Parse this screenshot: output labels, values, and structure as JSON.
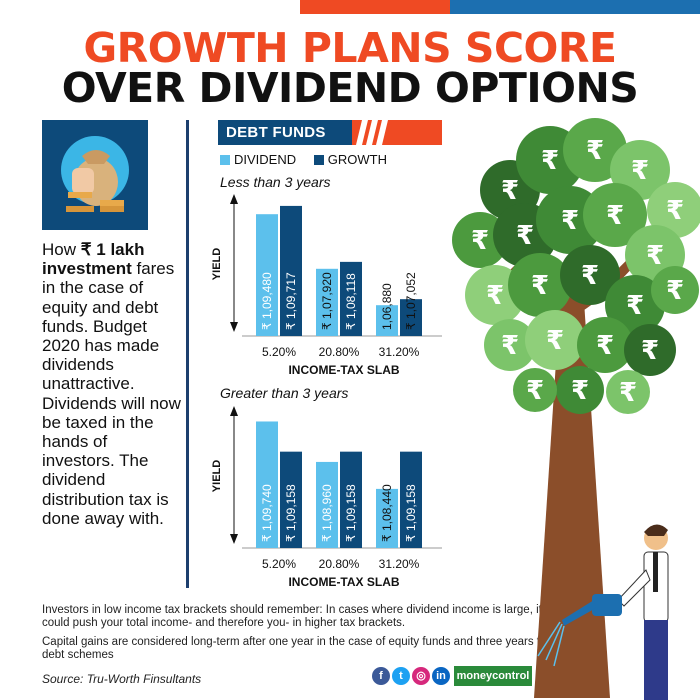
{
  "header": {
    "title_line1": "GROWTH PLANS SCORE",
    "title_line2": "OVER DIVIDEND OPTIONS"
  },
  "sidebar": {
    "intro_prefix": "How ",
    "intro_bold": "₹ 1 lakh investment",
    "intro_rest": " fares in the case of equity and debt funds. Budget 2020 has made dividends unattractive. Dividends will now be taxed in the hands of investors. The dividend distribution tax is done away with."
  },
  "section_label": "DEBT FUNDS",
  "legend": [
    {
      "name": "DIVIDEND",
      "color": "#5cc0ec"
    },
    {
      "name": "GROWTH",
      "color": "#0d4a7a"
    }
  ],
  "colors": {
    "dividend": "#5cc0ec",
    "growth": "#0d4a7a",
    "accent": "#ef4a23",
    "navy": "#1d3f6e"
  },
  "chart_data": [
    {
      "type": "bar",
      "title": "Less than 3 years",
      "xlabel": "INCOME-TAX SLAB",
      "ylabel": "YIELD",
      "categories": [
        "5.20%",
        "20.80%",
        "31.20%"
      ],
      "series": [
        {
          "name": "DIVIDEND",
          "values": [
            109480,
            107920,
            106880
          ],
          "labels": [
            "₹ 1,09,480",
            "₹ 1,07,920",
            "1,06,880"
          ]
        },
        {
          "name": "GROWTH",
          "values": [
            109717,
            108118,
            107052
          ],
          "labels": [
            "₹ 1,09,717",
            "₹ 1,08,118",
            "₹ 1,07,052"
          ]
        }
      ],
      "ylim": [
        106000,
        110000
      ]
    },
    {
      "type": "bar",
      "title": "Greater than 3 years",
      "xlabel": "INCOME-TAX SLAB",
      "ylabel": "YIELD",
      "categories": [
        "5.20%",
        "20.80%",
        "31.20%"
      ],
      "series": [
        {
          "name": "DIVIDEND",
          "values": [
            109740,
            108960,
            108440
          ],
          "labels": [
            "₹ 1,09,740",
            "₹ 1,08,960",
            "₹ 1,08,440"
          ]
        },
        {
          "name": "GROWTH",
          "values": [
            109158,
            109158,
            109158
          ],
          "labels": [
            "₹ 1,09,158",
            "₹ 1,09,158",
            "₹ 1,09,158"
          ]
        }
      ],
      "ylim": [
        107300,
        110000
      ]
    }
  ],
  "footnotes": [
    "Investors in low income tax brackets should remember: In cases where dividend income is large, it could push your total income- and therefore you- in higher tax brackets.",
    "Capital gains are considered long-term after one year in the case of equity funds and three years for debt schemes"
  ],
  "source": "Source: Tru-Worth Finsultants",
  "brand": "moneycontrol",
  "social_icons": [
    {
      "name": "facebook-icon",
      "glyph": "f",
      "color": "#3b5998"
    },
    {
      "name": "twitter-icon",
      "glyph": "t",
      "color": "#1da1f2"
    },
    {
      "name": "instagram-icon",
      "glyph": "◎",
      "color": "#d6287c"
    },
    {
      "name": "linkedin-icon",
      "glyph": "in",
      "color": "#0a66c2"
    }
  ],
  "tree_glyph": "₹"
}
